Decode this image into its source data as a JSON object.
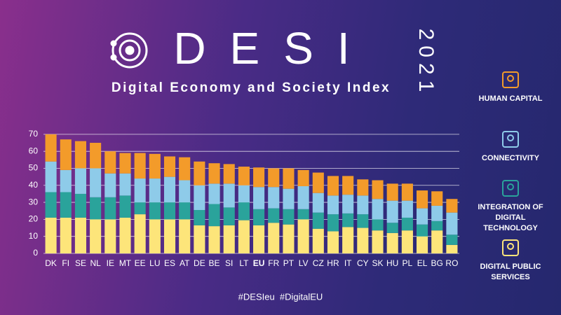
{
  "chart_data": {
    "type": "stacked_bar",
    "title": "DESI",
    "year": "2021",
    "subtitle": "Digital Economy and Society Index",
    "footer": "#DESIeu  #DigitalEU",
    "categories": [
      "DK",
      "FI",
      "SE",
      "NL",
      "IE",
      "MT",
      "EE",
      "LU",
      "ES",
      "AT",
      "DE",
      "BE",
      "SI",
      "LT",
      "EU",
      "FR",
      "PT",
      "LV",
      "CZ",
      "HR",
      "IT",
      "CY",
      "SK",
      "HU",
      "PL",
      "EL",
      "BG",
      "RO"
    ],
    "series": [
      {
        "name": "HUMAN CAPITAL",
        "color": "#f39b2a",
        "values": [
          16,
          18,
          16,
          15,
          13,
          12,
          15,
          14.5,
          12,
          13.5,
          14,
          12,
          11.5,
          11,
          11.5,
          11,
          12,
          9.5,
          12,
          11.5,
          11,
          9.5,
          11,
          10,
          10,
          10.5,
          8.5,
          8
        ]
      },
      {
        "name": "CONNECTIVITY",
        "color": "#8ecbe9",
        "values": [
          18,
          13,
          15,
          17,
          14,
          13,
          14,
          14,
          15,
          13,
          14.5,
          12,
          14,
          10,
          13,
          12.5,
          12,
          13.5,
          11.5,
          11,
          11,
          11,
          12,
          13,
          10,
          9.5,
          9,
          13
        ]
      },
      {
        "name": "INTEGRATION OF DIGITAL TECHNOLOGY",
        "color": "#2aa39b",
        "values": [
          15,
          15,
          14,
          13,
          13,
          13,
          7,
          10,
          10,
          10,
          9,
          13,
          10.5,
          10.5,
          9.5,
          8.5,
          9,
          6,
          9.5,
          10,
          8,
          8,
          6.5,
          6,
          7.5,
          7,
          5.5,
          6
        ]
      },
      {
        "name": "DIGITAL PUBLIC SERVICES",
        "color": "#fde57a",
        "values": [
          21,
          21,
          21,
          20,
          20,
          21,
          23,
          20,
          20,
          20,
          16.5,
          16,
          16.5,
          19.5,
          16.5,
          18,
          17,
          20,
          14.5,
          13,
          15.5,
          15,
          13.5,
          12,
          13.5,
          10,
          13.5,
          5
        ]
      }
    ],
    "ylim": [
      0,
      72
    ],
    "yticks": [
      0,
      10,
      20,
      30,
      40,
      50,
      60,
      70
    ],
    "grid": true
  }
}
